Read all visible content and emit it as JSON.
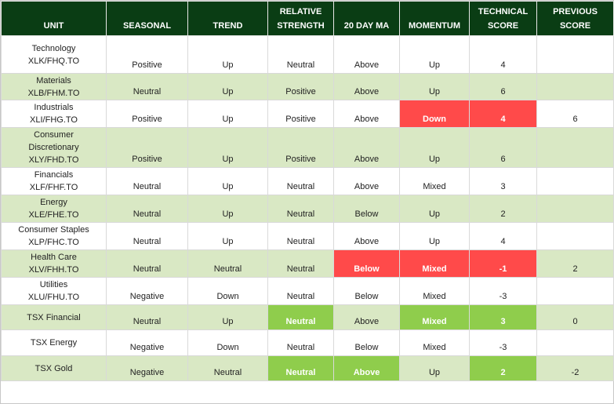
{
  "headers": [
    [
      "UNIT"
    ],
    [
      "SEASONAL"
    ],
    [
      "TREND"
    ],
    [
      "RELATIVE",
      "STRENGTH"
    ],
    [
      "20 DAY MA"
    ],
    [
      "MOMENTUM"
    ],
    [
      "TECHNICAL",
      "SCORE"
    ],
    [
      "PREVIOUS",
      "SCORE"
    ]
  ],
  "rows": [
    {
      "unit": [
        "Technology",
        "XLK/FHQ.TO"
      ],
      "seasonal": "Positive",
      "trend": "Up",
      "relative_strength": "Neutral",
      "ma20": "Above",
      "momentum": "Up",
      "technical_score": "4",
      "previous_score": "",
      "highlight": {}
    },
    {
      "unit": [
        "Materials",
        "XLB/FHM.TO"
      ],
      "seasonal": "Neutral",
      "trend": "Up",
      "relative_strength": "Positive",
      "ma20": "Above",
      "momentum": "Up",
      "technical_score": "6",
      "previous_score": "",
      "highlight": {}
    },
    {
      "unit": [
        "Industrials",
        "XLI/FHG.TO"
      ],
      "seasonal": "Positive",
      "trend": "Up",
      "relative_strength": "Positive",
      "ma20": "Above",
      "momentum": "Down",
      "technical_score": "4",
      "previous_score": "6",
      "highlight": {
        "momentum": "red",
        "technical_score": "red"
      }
    },
    {
      "unit": [
        "Consumer",
        "Discretionary",
        "XLY/FHD.TO"
      ],
      "seasonal": "Positive",
      "trend": "Up",
      "relative_strength": "Positive",
      "ma20": "Above",
      "momentum": "Up",
      "technical_score": "6",
      "previous_score": "",
      "highlight": {}
    },
    {
      "unit": [
        "Financials",
        "XLF/FHF.TO"
      ],
      "seasonal": "Neutral",
      "trend": "Up",
      "relative_strength": "Neutral",
      "ma20": "Above",
      "momentum": "Mixed",
      "technical_score": "3",
      "previous_score": "",
      "highlight": {}
    },
    {
      "unit": [
        "Energy",
        "XLE/FHE.TO"
      ],
      "seasonal": "Neutral",
      "trend": "Up",
      "relative_strength": "Neutral",
      "ma20": "Below",
      "momentum": "Up",
      "technical_score": "2",
      "previous_score": "",
      "highlight": {}
    },
    {
      "unit": [
        "Consumer Staples",
        "XLP/FHC.TO"
      ],
      "seasonal": "Neutral",
      "trend": "Up",
      "relative_strength": "Neutral",
      "ma20": "Above",
      "momentum": "Up",
      "technical_score": "4",
      "previous_score": "",
      "highlight": {}
    },
    {
      "unit": [
        "Health Care",
        "XLV/FHH.TO"
      ],
      "seasonal": "Neutral",
      "trend": "Neutral",
      "relative_strength": "Neutral",
      "ma20": "Below",
      "momentum": "Mixed",
      "technical_score": "-1",
      "previous_score": "2",
      "highlight": {
        "ma20": "red",
        "momentum": "red",
        "technical_score": "red"
      }
    },
    {
      "unit": [
        "Utilities",
        "XLU/FHU.TO"
      ],
      "seasonal": "Negative",
      "trend": "Down",
      "relative_strength": "Neutral",
      "ma20": "Below",
      "momentum": "Mixed",
      "technical_score": "-3",
      "previous_score": "",
      "highlight": {}
    },
    {
      "unit": [
        "TSX Financial"
      ],
      "seasonal": "Neutral",
      "trend": "Up",
      "relative_strength": "Neutral",
      "ma20": "Above",
      "momentum": "Mixed",
      "technical_score": "3",
      "previous_score": "0",
      "highlight": {
        "relative_strength": "green",
        "momentum": "green",
        "technical_score": "green"
      }
    },
    {
      "unit": [
        "TSX Energy"
      ],
      "seasonal": "Negative",
      "trend": "Down",
      "relative_strength": "Neutral",
      "ma20": "Below",
      "momentum": "Mixed",
      "technical_score": "-3",
      "previous_score": "",
      "highlight": {}
    },
    {
      "unit": [
        "TSX Gold"
      ],
      "seasonal": "Negative",
      "trend": "Neutral",
      "relative_strength": "Neutral",
      "ma20": "Above",
      "momentum": "Up",
      "technical_score": "2",
      "previous_score": "-2",
      "highlight": {
        "relative_strength": "green",
        "ma20": "green",
        "technical_score": "green"
      }
    }
  ],
  "colors": {
    "header_bg": "#0a3d14",
    "alt_row_bg": "#d9e8c4",
    "red_highlight": "#ff4a4a",
    "green_highlight": "#8fcd4c"
  }
}
